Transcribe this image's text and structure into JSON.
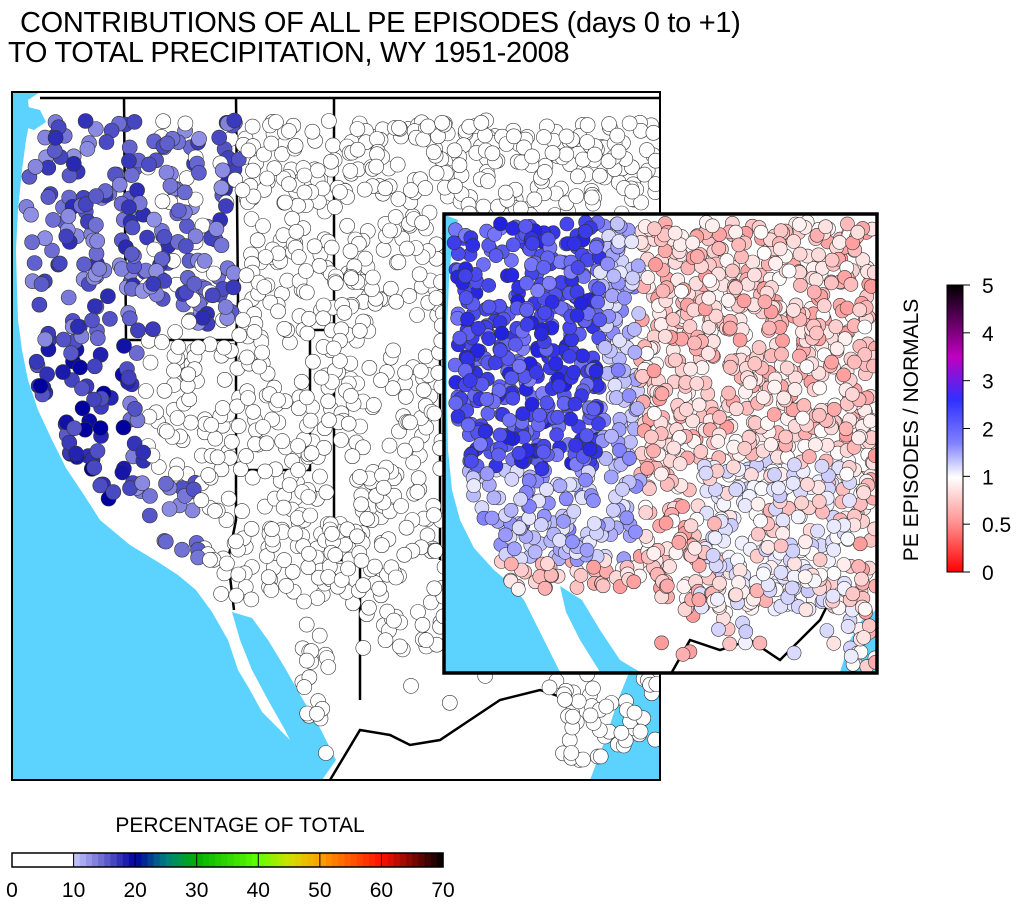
{
  "title": {
    "line1": "CONTRIBUTIONS OF ALL PE EPISODES (days 0 to +1)",
    "line2": "TO TOTAL PRECIPITATION, WY 1951-2008"
  },
  "main_map": {
    "ocean_color": "#5cd2ff",
    "land_color": "#ffffff"
  },
  "inset_map": {
    "ocean_color": "#5cd2ff"
  },
  "bottom_colorbar": {
    "label": "PERCENTAGE OF TOTAL",
    "ticks": [
      "0",
      "10",
      "20",
      "30",
      "40",
      "50",
      "60",
      "70"
    ],
    "min": 0,
    "max": 70,
    "stops": [
      {
        "v": 0,
        "c": "#ffffff"
      },
      {
        "v": 10,
        "c": "#ffffff"
      },
      {
        "v": 10.01,
        "c": "#c8c8ff"
      },
      {
        "v": 20,
        "c": "#0000a0"
      },
      {
        "v": 25,
        "c": "#008080"
      },
      {
        "v": 30,
        "c": "#00b000"
      },
      {
        "v": 40,
        "c": "#60ff00"
      },
      {
        "v": 45,
        "c": "#d0e000"
      },
      {
        "v": 50,
        "c": "#ffa000"
      },
      {
        "v": 60,
        "c": "#ff1000"
      },
      {
        "v": 70,
        "c": "#000000"
      }
    ]
  },
  "right_colorbar": {
    "label": "PE EPISODES / NORMALS",
    "ticks": [
      "5",
      "4",
      "3",
      "2",
      "1",
      "0.5",
      "0"
    ],
    "stops": [
      {
        "f": 0,
        "c": "#000000"
      },
      {
        "f": 0.25,
        "c": "#c000c0"
      },
      {
        "f": 0.4,
        "c": "#3030ff"
      },
      {
        "f": 0.55,
        "c": "#8080ff"
      },
      {
        "f": 0.67,
        "c": "#ffffff"
      },
      {
        "f": 0.83,
        "c": "#ff9090"
      },
      {
        "f": 1,
        "c": "#ff0000"
      }
    ]
  }
}
